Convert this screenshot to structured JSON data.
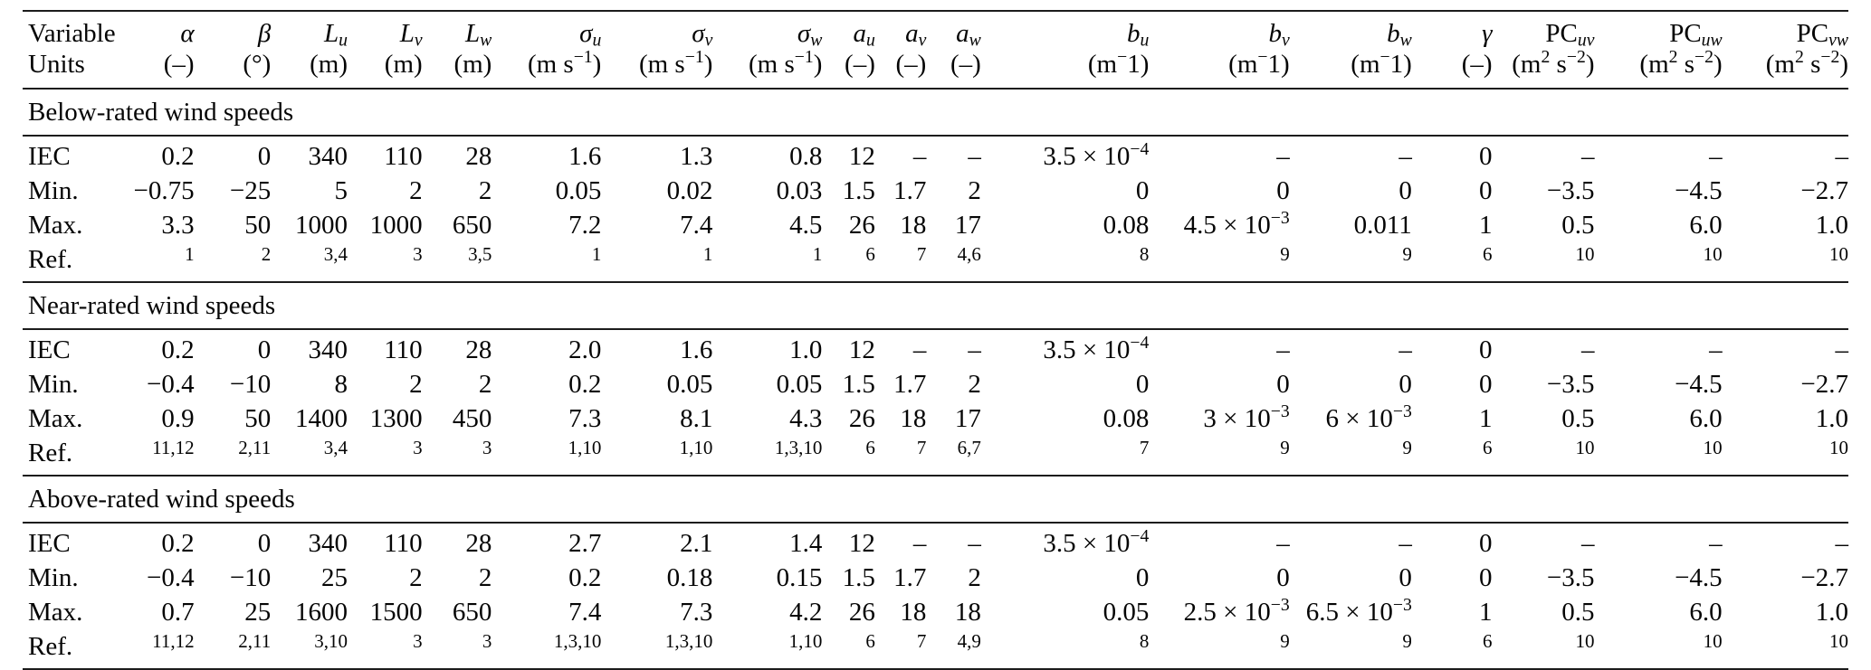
{
  "table": {
    "title": "Turbulence and wind-field parameter ranges table",
    "columns": [
      {
        "id": "variable",
        "header": "Variable",
        "unit": "Units"
      },
      {
        "id": "alpha",
        "header": "*α*",
        "unit": "(–)"
      },
      {
        "id": "beta",
        "header": "*β*",
        "unit": "(°)"
      },
      {
        "id": "Lu",
        "header": "*L*_{*u*}",
        "unit": "(m)"
      },
      {
        "id": "Lv",
        "header": "*L*_{*v*}",
        "unit": "(m)"
      },
      {
        "id": "Lw",
        "header": "*L*_{*w*}",
        "unit": "(m)"
      },
      {
        "id": "sigma-u",
        "header": "*σ*_{*u*}",
        "unit": "(m s^{−1})"
      },
      {
        "id": "sigma-v",
        "header": "*σ*_{*v*}",
        "unit": "(m s^{−1})"
      },
      {
        "id": "sigma-w",
        "header": "*σ*_{*w*}",
        "unit": "(m s^{−1})"
      },
      {
        "id": "au",
        "header": "*a*_{*u*}",
        "unit": "(–)"
      },
      {
        "id": "av",
        "header": "*a*_{*v*}",
        "unit": "(–)"
      },
      {
        "id": "aw",
        "header": "*a*_{*w*}",
        "unit": "(–)"
      },
      {
        "id": "bu",
        "header": "*b*_{*u*}",
        "unit": "(m^{−}1)"
      },
      {
        "id": "bv",
        "header": "*b*_{*v*}",
        "unit": "(m^{−}1)"
      },
      {
        "id": "bw",
        "header": "*b*_{*w*}",
        "unit": "(m^{−}1)"
      },
      {
        "id": "gamma",
        "header": "*γ*",
        "unit": "(–)"
      },
      {
        "id": "PCuv",
        "header": "PC_{*uv*}",
        "unit": "(m^{2} s^{−2})"
      },
      {
        "id": "PCuw",
        "header": "PC_{*uw*}",
        "unit": "(m^{2} s^{−2})"
      },
      {
        "id": "PCvw",
        "header": "PC_{*vw*}",
        "unit": "(m^{2} s^{−2})"
      }
    ],
    "sections": [
      {
        "title": "Below-rated wind speeds",
        "rows": [
          {
            "label": "IEC",
            "values": [
              "0.2",
              "0",
              "340",
              "110",
              "28",
              "1.6",
              "1.3",
              "0.8",
              "12",
              "–",
              "–",
              "3.5 × 10^{−4}",
              "–",
              "–",
              "0",
              "–",
              "–",
              "–"
            ]
          },
          {
            "label": "Min.",
            "values": [
              "−0.75",
              "−25",
              "5",
              "2",
              "2",
              "0.05",
              "0.02",
              "0.03",
              "1.5",
              "1.7",
              "2",
              "0",
              "0",
              "0",
              "0",
              "−3.5",
              "−4.5",
              "−2.7"
            ]
          },
          {
            "label": "Max.",
            "values": [
              "3.3",
              "50",
              "1000",
              "1000",
              "650",
              "7.2",
              "7.4",
              "4.5",
              "26",
              "18",
              "17",
              "0.08",
              "4.5 × 10^{−3}",
              "0.011",
              "1",
              "0.5",
              "6.0",
              "1.0"
            ]
          },
          {
            "label": "Ref.",
            "is_ref": true,
            "values": [
              "1",
              "2",
              "3,4",
              "3",
              "3,5",
              "1",
              "1",
              "1",
              "6",
              "7",
              "4,6",
              "8",
              "9",
              "9",
              "6",
              "10",
              "10",
              "10"
            ]
          }
        ]
      },
      {
        "title": "Near-rated wind speeds",
        "rows": [
          {
            "label": "IEC",
            "values": [
              "0.2",
              "0",
              "340",
              "110",
              "28",
              "2.0",
              "1.6",
              "1.0",
              "12",
              "–",
              "–",
              "3.5 × 10^{−4}",
              "–",
              "–",
              "0",
              "–",
              "–",
              "–"
            ]
          },
          {
            "label": "Min.",
            "values": [
              "−0.4",
              "−10",
              "8",
              "2",
              "2",
              "0.2",
              "0.05",
              "0.05",
              "1.5",
              "1.7",
              "2",
              "0",
              "0",
              "0",
              "0",
              "−3.5",
              "−4.5",
              "−2.7"
            ]
          },
          {
            "label": "Max.",
            "values": [
              "0.9",
              "50",
              "1400",
              "1300",
              "450",
              "7.3",
              "8.1",
              "4.3",
              "26",
              "18",
              "17",
              "0.08",
              "3 × 10^{−3}",
              "6 × 10^{−3}",
              "1",
              "0.5",
              "6.0",
              "1.0"
            ]
          },
          {
            "label": "Ref.",
            "is_ref": true,
            "values": [
              "11,12",
              "2,11",
              "3,4",
              "3",
              "3",
              "1,10",
              "1,10",
              "1,3,10",
              "6",
              "7",
              "6,7",
              "7",
              "9",
              "9",
              "6",
              "10",
              "10",
              "10"
            ]
          }
        ]
      },
      {
        "title": "Above-rated wind speeds",
        "rows": [
          {
            "label": "IEC",
            "values": [
              "0.2",
              "0",
              "340",
              "110",
              "28",
              "2.7",
              "2.1",
              "1.4",
              "12",
              "–",
              "–",
              "3.5 × 10^{−4}",
              "–",
              "–",
              "0",
              "–",
              "–",
              "–"
            ]
          },
          {
            "label": "Min.",
            "values": [
              "−0.4",
              "−10",
              "25",
              "2",
              "2",
              "0.2",
              "0.18",
              "0.15",
              "1.5",
              "1.7",
              "2",
              "0",
              "0",
              "0",
              "0",
              "−3.5",
              "−4.5",
              "−2.7"
            ]
          },
          {
            "label": "Max.",
            "values": [
              "0.7",
              "25",
              "1600",
              "1500",
              "650",
              "7.4",
              "7.3",
              "4.2",
              "26",
              "18",
              "18",
              "0.05",
              "2.5 × 10^{−3}",
              "6.5 × 10^{−3}",
              "1",
              "0.5",
              "6.0",
              "1.0"
            ]
          },
          {
            "label": "Ref.",
            "is_ref": true,
            "values": [
              "11,12",
              "2,11",
              "3,10",
              "3",
              "3",
              "1,3,10",
              "1,3,10",
              "1,10",
              "6",
              "7",
              "4,9",
              "8",
              "9",
              "9",
              "6",
              "10",
              "10",
              "10"
            ]
          }
        ]
      }
    ]
  }
}
